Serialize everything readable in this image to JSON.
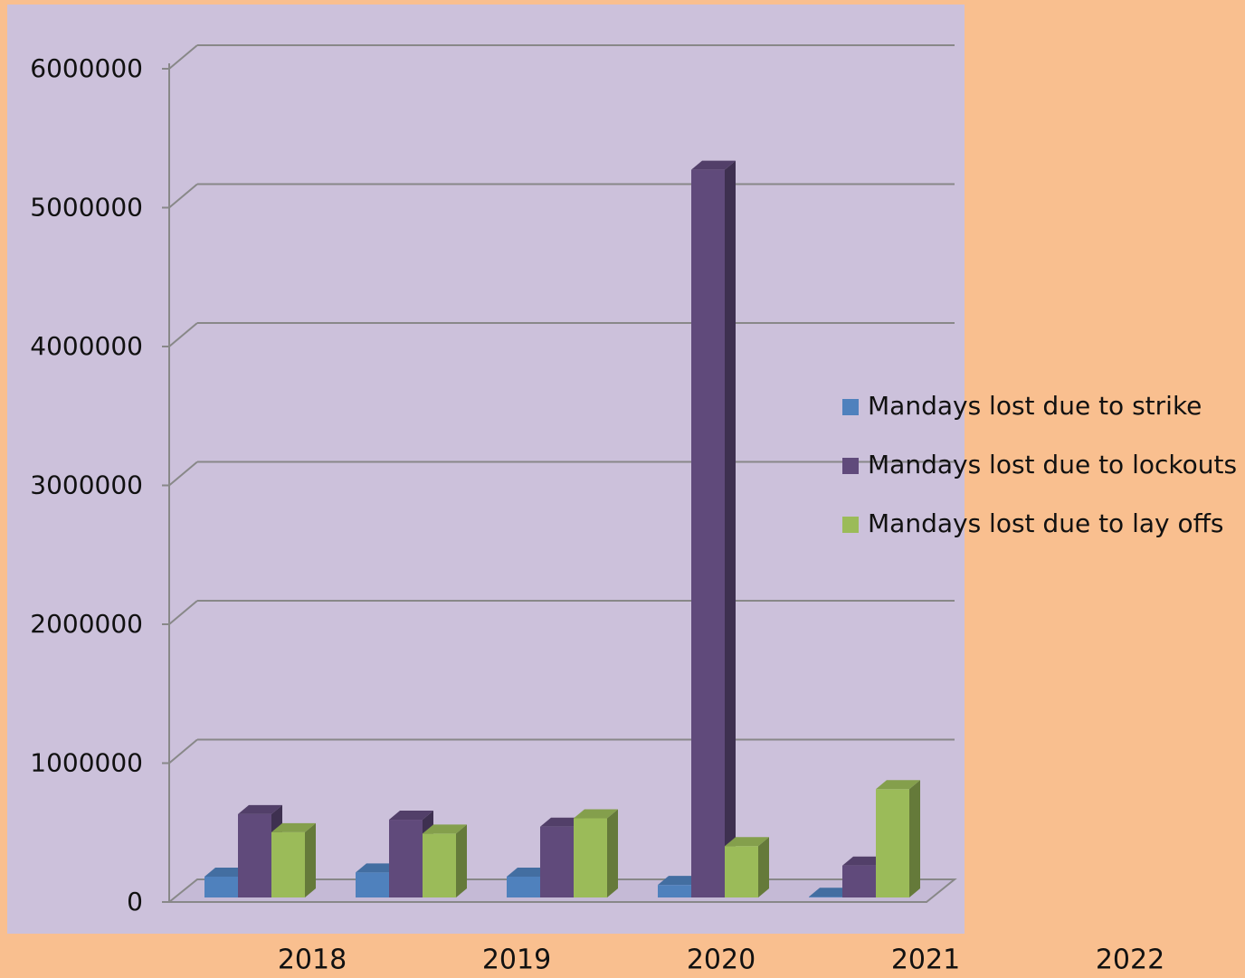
{
  "chart_data": {
    "type": "bar",
    "categories": [
      "2018",
      "2019",
      "2020",
      "2021",
      "2022"
    ],
    "series": [
      {
        "name": "Mandays lost due to strike",
        "color": "#4f81bd",
        "values": [
          150000,
          180000,
          150000,
          90000,
          5000
        ]
      },
      {
        "name": "Mandays lost due to lockouts",
        "color": "#604a7b",
        "values": [
          600000,
          560000,
          510000,
          5240000,
          230000
        ]
      },
      {
        "name": "Mandays lost due to lay offs",
        "color": "#9bbb59",
        "values": [
          470000,
          460000,
          570000,
          370000,
          780000
        ]
      }
    ],
    "ylim": [
      0,
      6000000
    ],
    "yticks": [
      0,
      1000000,
      2000000,
      3000000,
      4000000,
      5000000,
      6000000
    ],
    "grid": true
  }
}
